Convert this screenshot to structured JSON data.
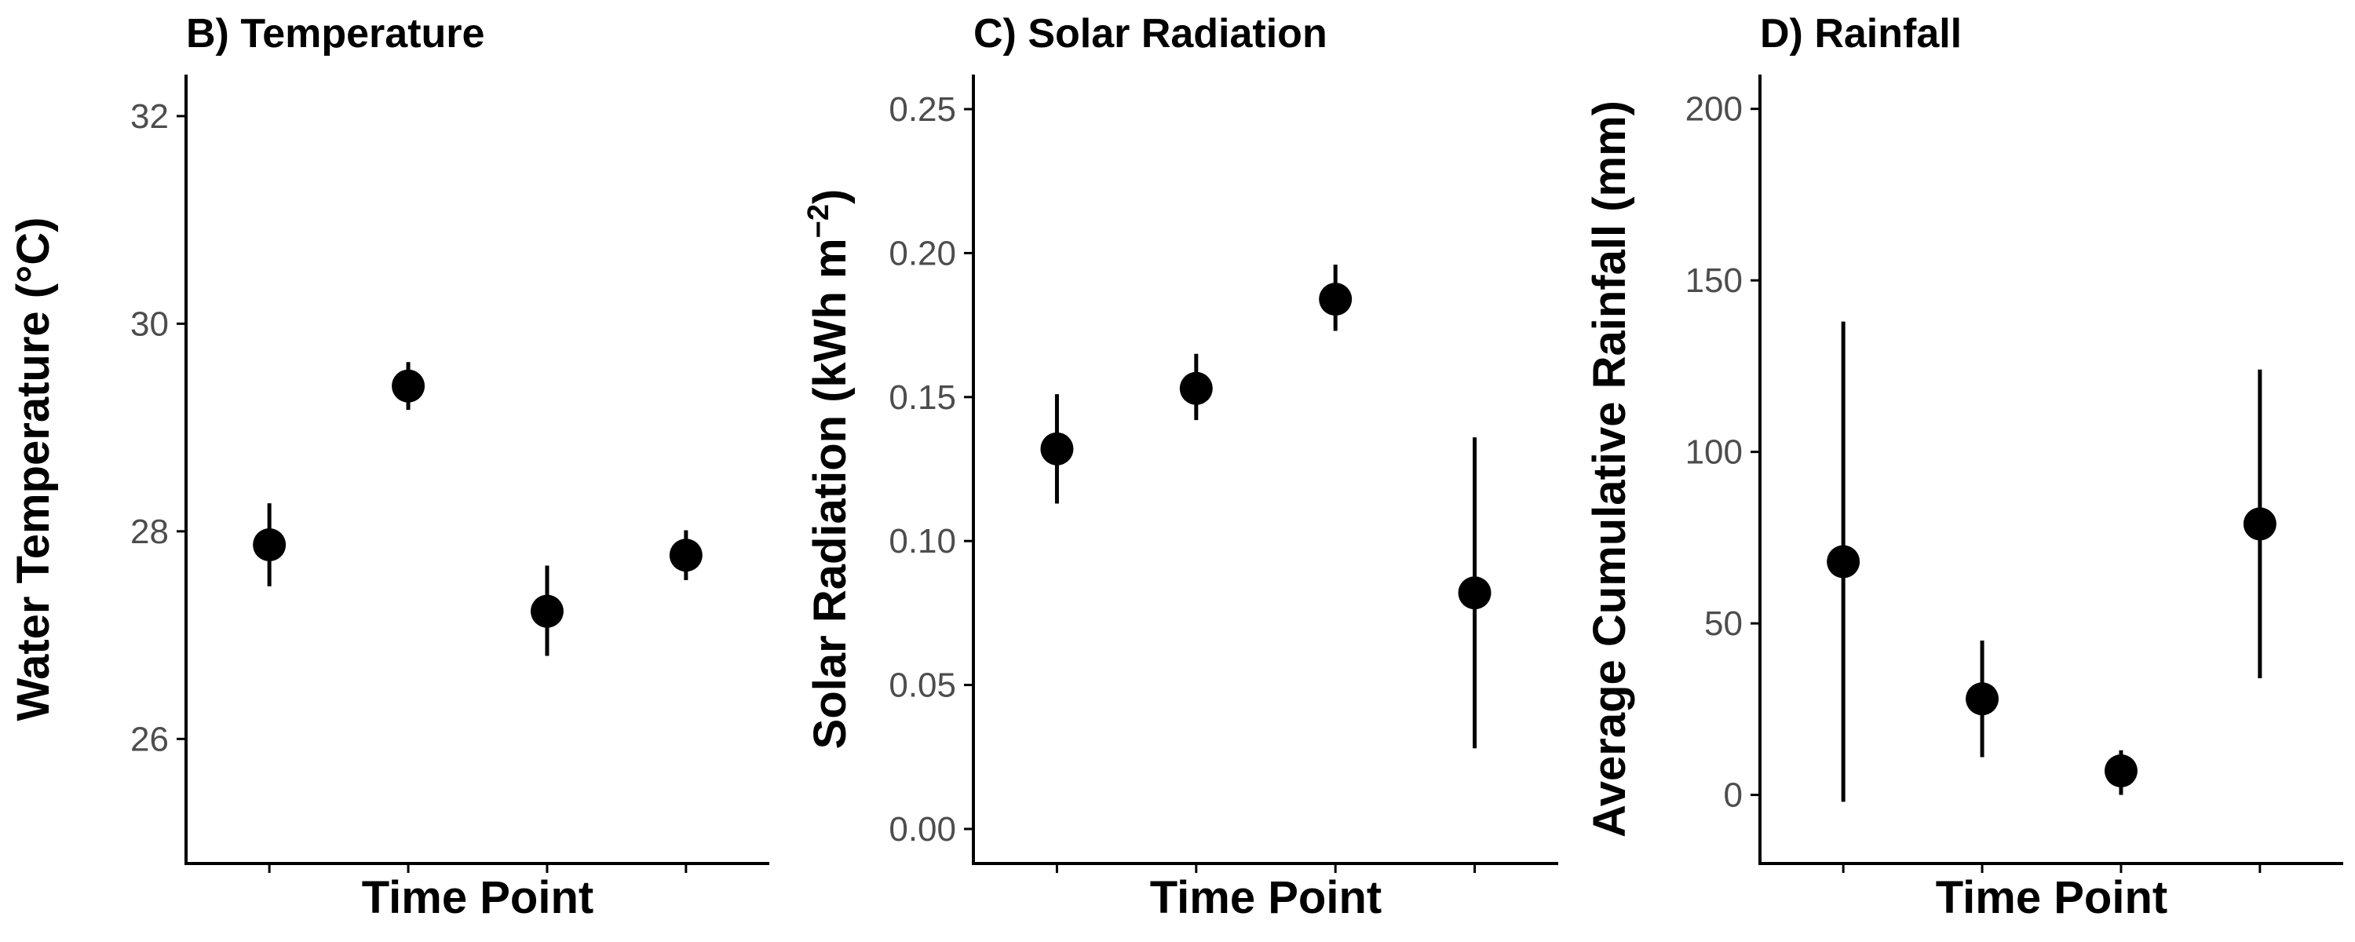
{
  "chart_data": [
    {
      "type": "scatter",
      "title": "B) Temperature",
      "xlabel": "Time Point",
      "ylabel": "Water Temperature (°C)",
      "ylim": [
        24.8,
        32.4
      ],
      "yticks": [
        26,
        28,
        30,
        32
      ],
      "ytick_labels": [
        "26",
        "28",
        "30",
        "32"
      ],
      "x": [
        1,
        2,
        3,
        4
      ],
      "xlim": [
        0.4,
        4.6
      ],
      "values": [
        27.87,
        29.4,
        27.23,
        27.77
      ],
      "lower": [
        27.47,
        29.17,
        26.8,
        27.53
      ],
      "upper": [
        28.27,
        29.63,
        27.67,
        28.01
      ],
      "grid": false
    },
    {
      "type": "scatter",
      "title": "C) Solar Radiation",
      "xlabel": "Time Point",
      "ylabel_parts": [
        "Solar Radiation (kWh m",
        "−2",
        ")"
      ],
      "ylim": [
        -0.012,
        0.262
      ],
      "yticks": [
        0,
        0.05,
        0.1,
        0.15,
        0.2,
        0.25
      ],
      "ytick_labels": [
        "0.00",
        "0.05",
        "0.10",
        "0.15",
        "0.20",
        "0.25"
      ],
      "x": [
        1,
        2,
        3,
        4
      ],
      "xlim": [
        0.4,
        4.6
      ],
      "values": [
        0.132,
        0.153,
        0.184,
        0.082
      ],
      "lower": [
        0.113,
        0.142,
        0.173,
        0.028
      ],
      "upper": [
        0.151,
        0.165,
        0.196,
        0.136
      ],
      "grid": false
    },
    {
      "type": "scatter",
      "title": "D) Rainfall",
      "xlabel": "Time Point",
      "ylabel": "Average Cumulative Rainfall (mm)",
      "ylim": [
        -20,
        210
      ],
      "yticks": [
        0,
        50,
        100,
        150,
        200
      ],
      "ytick_labels": [
        "0",
        "50",
        "100",
        "150",
        "200"
      ],
      "x": [
        1,
        2,
        3,
        4
      ],
      "xlim": [
        0.4,
        4.6
      ],
      "values": [
        68,
        28,
        7,
        79
      ],
      "lower": [
        -2,
        11,
        0,
        34
      ],
      "upper": [
        138,
        45,
        13,
        124
      ],
      "grid": false
    }
  ]
}
